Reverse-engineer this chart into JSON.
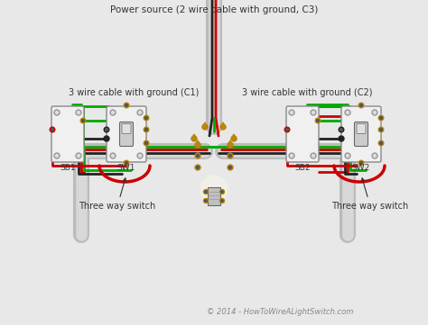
{
  "background_color": "#e8e8e8",
  "title": "Power source (2 wire cable with ground, C3)",
  "title_color": "#333333",
  "title_fontsize": 7.5,
  "copyright_text": "© 2014 - HowToWireALightSwitch.com",
  "copyright_color": "#888888",
  "copyright_fontsize": 6,
  "label_c1": "3 wire cable with ground (C1)",
  "label_c2": "3 wire cable with ground (C2)",
  "label_three_way": "Three way switch",
  "label_color": "#333333",
  "label_fontsize": 7,
  "conduit_color": "#bbbbbb",
  "conduit_inner": "#d8d8d8",
  "wire_red": "#cc0000",
  "wire_green": "#00aa00",
  "wire_black": "#222222",
  "wire_bare": "#b8860b",
  "box_fill": "#f0f0f0",
  "box_edge": "#888888",
  "switch_fill": "#cccccc",
  "switch_toggle": "#999999"
}
